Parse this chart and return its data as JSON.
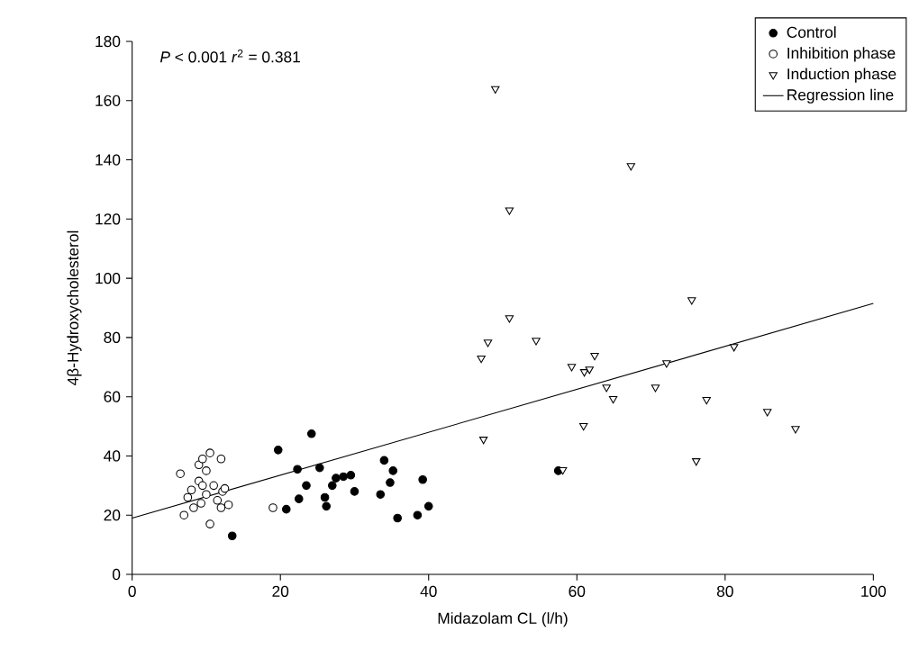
{
  "chart_data": {
    "type": "scatter",
    "xlabel": "Midazolam CL (l/h)",
    "ylabel": "4β-Hydroxycholesterol",
    "annotations": [
      "*P* < 0.001 *r*$^{2}$ = 0.381"
    ],
    "xlim": [
      0,
      100
    ],
    "ylim": [
      0,
      180
    ],
    "xticks": [
      0,
      20,
      40,
      60,
      80,
      100
    ],
    "yticks": [
      0,
      20,
      40,
      60,
      80,
      100,
      120,
      140,
      160,
      180
    ],
    "grid": false,
    "legend": "top right",
    "series": [
      {
        "name": "Control",
        "marker": "circle",
        "color": "#000000",
        "x": [
          13.5,
          19.7,
          20.8,
          22.3,
          22.5,
          23.5,
          24.2,
          25.3,
          26,
          26.2,
          27,
          27.5,
          28.5,
          29.5,
          30,
          33.5,
          34,
          34.8,
          35.2,
          35.8,
          38.5,
          39.2,
          40,
          57.5
        ],
        "values": [
          13,
          42,
          22,
          35.5,
          25.5,
          30,
          47.5,
          36,
          26,
          23,
          30,
          32.5,
          33,
          33.5,
          28,
          27,
          38.5,
          31,
          35,
          19,
          20,
          32,
          23,
          35
        ]
      },
      {
        "name": "Inhibition phase",
        "marker": "circle",
        "color": "#ffffff",
        "x": [
          6.5,
          7,
          7.5,
          8,
          8.3,
          9.3,
          9,
          9,
          9.5,
          9.5,
          10,
          10,
          10.5,
          10.5,
          11,
          11.5,
          12,
          12,
          12.2,
          12.5,
          13,
          19
        ],
        "values": [
          34,
          20,
          26,
          28.5,
          22.5,
          24,
          37,
          31.5,
          39,
          30,
          35,
          27,
          41,
          17,
          30,
          25,
          22.5,
          39,
          28,
          29,
          23.5,
          22.5
        ]
      },
      {
        "name": "Induction phase",
        "marker": "triangle",
        "color": "#ffffff",
        "x": [
          47.1,
          47.4,
          48,
          49,
          50.9,
          50.9,
          54.5,
          58.1,
          59.3,
          60.9,
          61,
          61.7,
          62.4,
          64,
          64.9,
          67.3,
          70.6,
          72.1,
          75.5,
          76.1,
          77.5,
          81.2,
          85.7,
          89.5
        ],
        "values": [
          73,
          45.6,
          78.4,
          164,
          123,
          86.6,
          79,
          35.3,
          70.2,
          50.2,
          68.4,
          69.3,
          73.9,
          63.2,
          59.3,
          138,
          63.2,
          71.4,
          92.7,
          38.3,
          59,
          76.9,
          55,
          49.2
        ]
      },
      {
        "name": "Regression line",
        "type": "line",
        "marker": "none",
        "line_style": "solid",
        "color": "#000000",
        "x": [
          0,
          100
        ],
        "values": [
          19,
          91.5
        ]
      }
    ]
  }
}
